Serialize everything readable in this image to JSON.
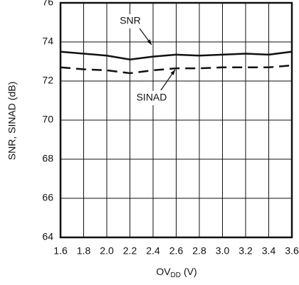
{
  "chart_data": {
    "type": "line",
    "x_label": [
      "OV",
      "DD",
      "(V)"
    ],
    "y_label": "SNR, SINAD (dB)",
    "x": [
      1.6,
      1.8,
      2.0,
      2.2,
      2.4,
      2.6,
      2.8,
      3.0,
      3.2,
      3.4,
      3.6
    ],
    "series": [
      {
        "name": "SNR",
        "color": "#111111",
        "dash": false,
        "values": [
          73.5,
          73.4,
          73.3,
          73.1,
          73.25,
          73.35,
          73.3,
          73.35,
          73.4,
          73.35,
          73.5
        ]
      },
      {
        "name": "SINAD",
        "color": "#111111",
        "dash": true,
        "values": [
          72.7,
          72.6,
          72.55,
          72.4,
          72.55,
          72.65,
          72.65,
          72.7,
          72.7,
          72.7,
          72.8
        ]
      }
    ],
    "xlim": [
      1.6,
      3.6
    ],
    "xticks": [
      1.6,
      1.8,
      {
        "value": 2,
        "label": "2.0"
      },
      2.2,
      2.4,
      2.6,
      2.8,
      {
        "value": 3,
        "label": "3.0"
      },
      3.2,
      3.4,
      3.6
    ],
    "ylim": [
      64,
      76
    ],
    "yticks": [
      64,
      66,
      68,
      70,
      72,
      74,
      76
    ],
    "grid": true
  }
}
